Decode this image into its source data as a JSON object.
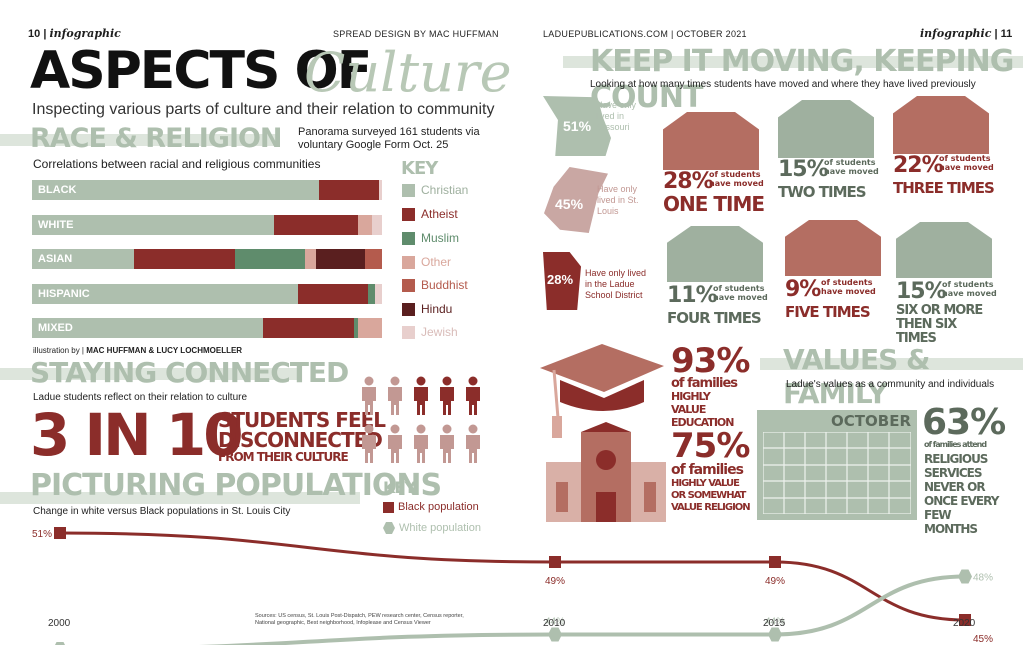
{
  "left_page": {
    "page_number": "10",
    "section": "infographic",
    "credit": "SPREAD DESIGN BY MAC HUFFMAN",
    "title_main": "ASPECTS OF",
    "title_script": "Culture",
    "subtitle": "Inspecting various parts of culture and their relation to community",
    "survey_note_line1": "Panorama surveyed 161 students via",
    "survey_note_line2": "voluntary Google Form Oct. 25",
    "race_heading": "RACE & RELIGION",
    "race_caption": "Correlations between racial and religious communities",
    "bars": [
      {
        "label": "BLACK",
        "segments": [
          {
            "cat": "Christian",
            "pct": 82
          },
          {
            "cat": "Atheist",
            "pct": 17
          },
          {
            "cat": "Jewish",
            "pct": 1
          }
        ]
      },
      {
        "label": "WHITE",
        "segments": [
          {
            "cat": "Christian",
            "pct": 69
          },
          {
            "cat": "Atheist",
            "pct": 24
          },
          {
            "cat": "Other",
            "pct": 4
          },
          {
            "cat": "Jewish",
            "pct": 3
          }
        ]
      },
      {
        "label": "ASIAN",
        "segments": [
          {
            "cat": "Christian",
            "pct": 29
          },
          {
            "cat": "Atheist",
            "pct": 29
          },
          {
            "cat": "Muslim",
            "pct": 20
          },
          {
            "cat": "Other",
            "pct": 3
          },
          {
            "cat": "Hindu",
            "pct": 14
          },
          {
            "cat": "Buddhist",
            "pct": 5
          }
        ]
      },
      {
        "label": "HISPANIC",
        "segments": [
          {
            "cat": "Christian",
            "pct": 76
          },
          {
            "cat": "Atheist",
            "pct": 20
          },
          {
            "cat": "Muslim",
            "pct": 2
          },
          {
            "cat": "Jewish",
            "pct": 2
          }
        ]
      },
      {
        "label": "MIXED",
        "segments": [
          {
            "cat": "Christian",
            "pct": 66
          },
          {
            "cat": "Atheist",
            "pct": 26
          },
          {
            "cat": "Muslim",
            "pct": 1
          },
          {
            "cat": "Other",
            "pct": 7
          }
        ]
      }
    ],
    "key_title": "KEY",
    "key": [
      {
        "label": "Christian",
        "color": "#aebfae"
      },
      {
        "label": "Atheist",
        "color": "#8b2d2a"
      },
      {
        "label": "Muslim",
        "color": "#5f8c6c"
      },
      {
        "label": "Other",
        "color": "#d9a79c"
      },
      {
        "label": "Buddhist",
        "color": "#b45b4d"
      },
      {
        "label": "Hindu",
        "color": "#5a1f1f"
      },
      {
        "label": "Jewish",
        "color": "#e8cfcd"
      }
    ],
    "illustration_prefix": "illustration by |",
    "illustration_names": "MAC HUFFMAN & LUCY LOCHMOELLER",
    "staying_heading": "STAYING CONNECTED",
    "staying_caption": "Ladue students reflect on their relation to culture",
    "stat_big": "3 IN 10",
    "stat_line1": "STUDENTS FEEL",
    "stat_line2": "DISCONNECTED",
    "stat_line3": "FROM THEIR CULTURE",
    "people_highlighted": 3,
    "people_total": 10,
    "picturing_heading": "PICTURING POPULATIONS",
    "picturing_caption": "Change in white versus Black populations in St. Louis City",
    "pop_key_title": "KEY",
    "pop_key_black": "Black population",
    "pop_key_white": "White population",
    "sources": "Sources: US census, St. Louis Post-Dispatch, PEW research center, Census reporter, National geographic, Best neighborhood, Infoplease and Census Viewer"
  },
  "chart_data": {
    "type": "line",
    "x": [
      2000,
      2010,
      2015,
      2020
    ],
    "series": [
      {
        "name": "Black population",
        "values": [
          51,
          49,
          49,
          45
        ],
        "labels": [
          "51%",
          "49%",
          "49%",
          "45%"
        ],
        "color": "#8b2d2a"
      },
      {
        "name": "White population",
        "values": [
          43,
          44,
          44,
          48
        ],
        "labels": [
          "43%",
          "44%",
          "44%",
          "48%"
        ],
        "color": "#aebfae"
      }
    ],
    "tick_labels": [
      "2000",
      "2010",
      "2015",
      "2020"
    ]
  },
  "right_page": {
    "site": "LADUEPUBLICATIONS.COM | OCTOBER 2021",
    "section": "infographic",
    "page_number": "11",
    "moving_heading": "KEEP IT MOVING, KEEPING COUNT",
    "moving_caption": "Looking at how many times students have moved and where they have lived previously",
    "lived": [
      {
        "pct": "51%",
        "text": "Have only lived in Missouri"
      },
      {
        "pct": "45%",
        "text": "Have only lived in St. Louis"
      },
      {
        "pct": "28%",
        "text": "Have only lived in the Ladue School District"
      }
    ],
    "moves": [
      {
        "pct": "28%",
        "small": "of students have moved",
        "label": "ONE TIME"
      },
      {
        "pct": "15%",
        "small": "of students have moved",
        "label": "TWO TIMES"
      },
      {
        "pct": "22%",
        "small": "of students have moved",
        "label": "THREE TIMES"
      },
      {
        "pct": "11%",
        "small": "of students have moved",
        "label": "FOUR TIMES"
      },
      {
        "pct": "9%",
        "small": "of students have moved",
        "label": "FIVE TIMES"
      },
      {
        "pct": "15%",
        "small": "of students have moved",
        "label": "SIX OR MORE THEN SIX TIMES"
      }
    ],
    "values_heading": "VALUES & FAMILY",
    "values_caption": "Ladue's values as a community and individuals",
    "edu_pct": "93%",
    "edu_small": "of families",
    "edu_text": "HIGHLY VALUE EDUCATION",
    "rel_pct": "75%",
    "rel_small": "of families",
    "rel_text": "HIGHLY VALUE OR SOMEWHAT VALUE RELIGION",
    "calendar_month": "OCTOBER",
    "services_pct": "63%",
    "services_small": "of families attend",
    "services_text": "RELIGIOUS SERVICES NEVER OR ONCE EVERY FEW MONTHS"
  }
}
